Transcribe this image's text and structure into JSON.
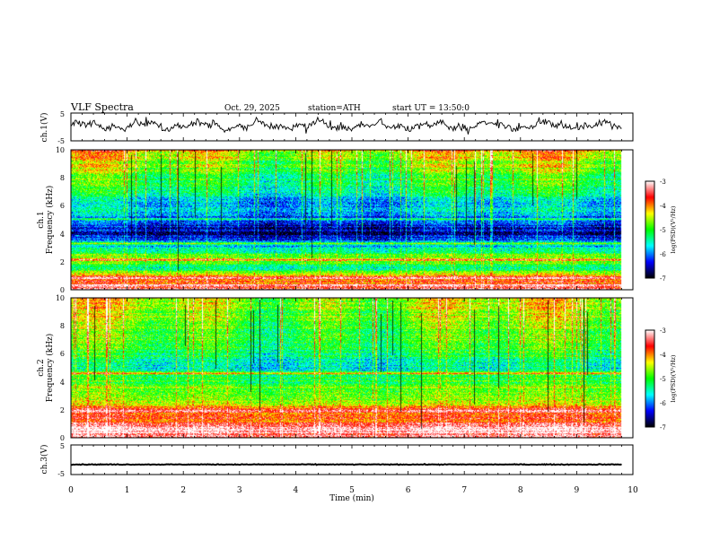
{
  "chart_data": {
    "type": "heatmap",
    "title": "VLF  Spectra",
    "date": "Oct. 29, 2025",
    "station": "station=ATH",
    "start_time": "start  UT  =    13:50:0",
    "xlabel": "Time  (min)",
    "xlim": [
      0,
      10
    ],
    "x_ticks": [
      "0",
      "1",
      "2",
      "3",
      "4",
      "5",
      "6",
      "7",
      "8",
      "9",
      "10"
    ],
    "panels": {
      "ch1_waveform": {
        "ylabel": "ch.1(V)",
        "ylim": [
          -5,
          5
        ],
        "y_ticks": [
          "5",
          "-5"
        ],
        "data_end_min": 9.8,
        "baseline_v": 0.5,
        "amplitude_v": 1.6
      },
      "ch1_spectrogram": {
        "ylabel_channel": "ch.1",
        "ylabel": "Frequency  (kHz)",
        "ylim": [
          0,
          10
        ],
        "y_ticks": [
          "0",
          "2",
          "4",
          "6",
          "8",
          "10"
        ],
        "data_end_min": 9.8,
        "intensity_profile_khz": [
          [
            0.0,
            -3.2
          ],
          [
            0.4,
            -4.0
          ],
          [
            0.9,
            -3.6
          ],
          [
            1.5,
            -5.4
          ],
          [
            2.2,
            -4.6
          ],
          [
            3.0,
            -5.6
          ],
          [
            4.0,
            -6.6
          ],
          [
            4.6,
            -6.4
          ],
          [
            5.2,
            -6.0
          ],
          [
            6.5,
            -5.6
          ],
          [
            8.0,
            -5.0
          ],
          [
            9.2,
            -4.6
          ],
          [
            10.0,
            -4.2
          ]
        ],
        "bands_khz": [
          [
            0.35,
            -3.1
          ],
          [
            0.85,
            -3.3
          ],
          [
            2.15,
            -3.6
          ],
          [
            3.3,
            -4.4
          ],
          [
            5.05,
            -5.2
          ]
        ]
      },
      "ch2_spectrogram": {
        "ylabel_channel": "ch.2",
        "ylabel": "Frequency  (kHz)",
        "ylim": [
          0,
          10
        ],
        "y_ticks": [
          "0",
          "2",
          "4",
          "6",
          "8",
          "10"
        ],
        "data_end_min": 9.8,
        "intensity_profile_khz": [
          [
            0.0,
            -3.4
          ],
          [
            0.6,
            -3.1
          ],
          [
            1.2,
            -3.8
          ],
          [
            2.0,
            -3.9
          ],
          [
            2.6,
            -4.5
          ],
          [
            3.5,
            -5.0
          ],
          [
            4.5,
            -5.1
          ],
          [
            5.0,
            -5.6
          ],
          [
            6.0,
            -5.2
          ],
          [
            8.0,
            -4.8
          ],
          [
            10.0,
            -4.5
          ]
        ],
        "bands_khz": [
          [
            0.5,
            -3.0
          ],
          [
            1.0,
            -3.2
          ],
          [
            1.9,
            -3.0
          ],
          [
            2.05,
            -3.3
          ],
          [
            4.6,
            -3.4
          ],
          [
            3.6,
            -4.2
          ]
        ]
      },
      "ch3_waveform": {
        "ylabel": "ch.3(V)",
        "ylim": [
          -5,
          5
        ],
        "y_ticks": [
          "5",
          "-5"
        ],
        "data_end_min": 9.8,
        "baseline_v": -1.6,
        "amplitude_v": 0.12
      }
    },
    "colorbar": {
      "label": "log(PSD)(V²/Hz)",
      "range": [
        -7,
        -3
      ],
      "ticks": [
        "-3",
        "-4",
        "-5",
        "-6",
        "-7"
      ],
      "colormap": [
        "#000000",
        "#0000ff",
        "#00ffff",
        "#00ff00",
        "#ffff00",
        "#ff0000",
        "#ffffff"
      ]
    }
  }
}
